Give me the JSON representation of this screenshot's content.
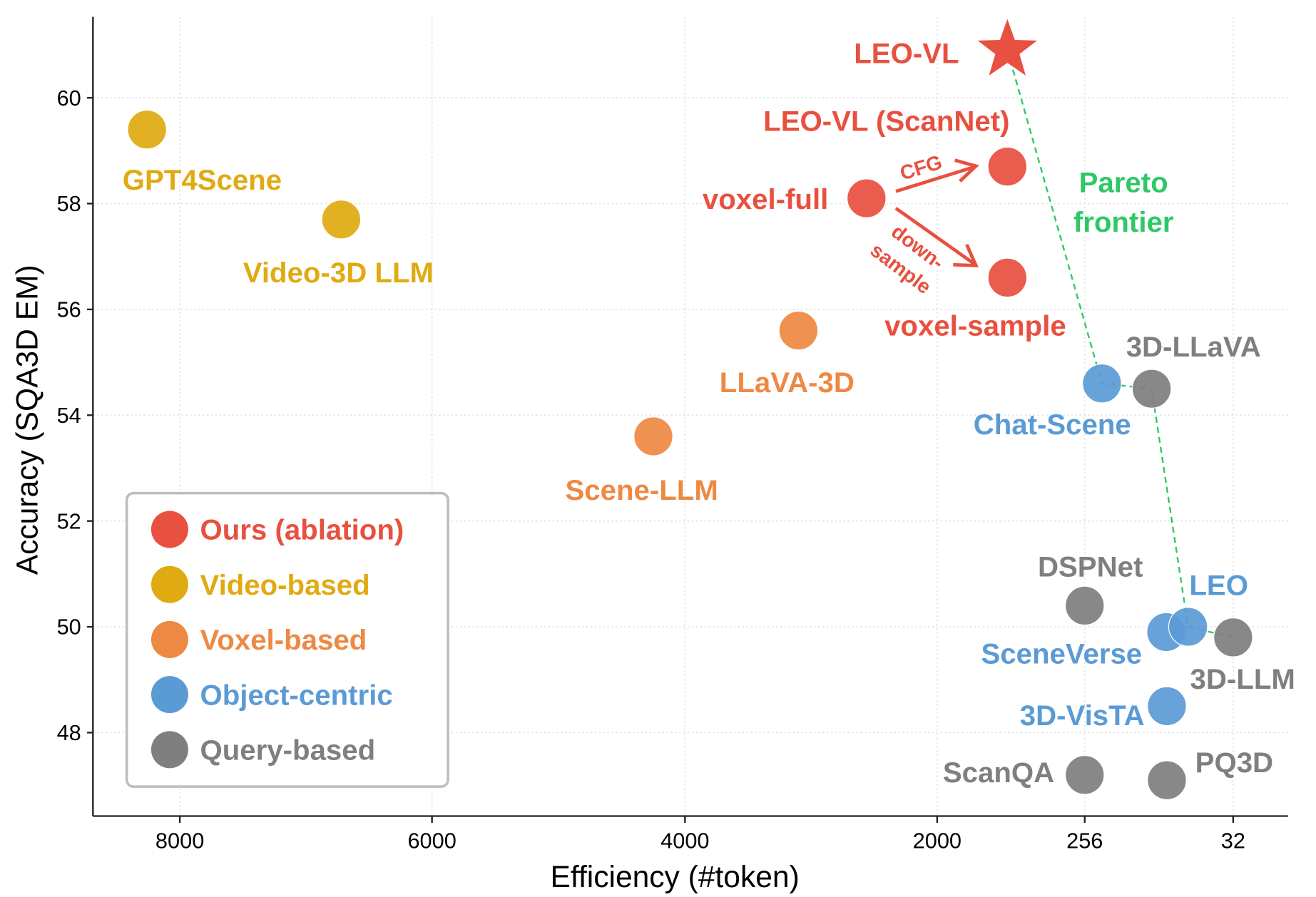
{
  "chart_data": {
    "type": "scatter",
    "xlabel": "Efficiency (#token)",
    "ylabel": "Accuracy (SQA3D EM)",
    "x_ticks": [
      8000,
      6000,
      4000,
      2000,
      256,
      32
    ],
    "x_scale": "piecewise, reversed (more tokens on left)",
    "y_ticks": [
      48,
      50,
      52,
      54,
      56,
      58,
      60
    ],
    "ylim": [
      46.6,
      61.6
    ],
    "grid": true,
    "legend_placement": "bottom-left",
    "colors": {
      "Ours (ablation)": "#e8503f",
      "Video-based": "#e0aa12",
      "Voxel-based": "#ee8944",
      "Object-centric": "#5b9bd5",
      "Query-based": "#7f7f7f",
      "pareto": "#2ec866"
    },
    "legend": [
      "Ours (ablation)",
      "Video-based",
      "Voxel-based",
      "Object-centric",
      "Query-based"
    ],
    "points": [
      {
        "name": "LEO-VL",
        "group": "Ours (ablation)",
        "x": 1170,
        "y": 60.9,
        "marker": "star"
      },
      {
        "name": "LEO-VL (ScanNet)",
        "group": "Ours (ablation)",
        "x": 1170,
        "y": 58.7
      },
      {
        "name": "voxel-full",
        "group": "Ours (ablation)",
        "x": 2560,
        "y": 58.1
      },
      {
        "name": "voxel-sample",
        "group": "Ours (ablation)",
        "x": 1170,
        "y": 56.6
      },
      {
        "name": "GPT4Scene",
        "group": "Video-based",
        "x": 8260,
        "y": 59.4
      },
      {
        "name": "Video-3D LLM",
        "group": "Video-based",
        "x": 6720,
        "y": 57.7
      },
      {
        "name": "LLaVA-3D",
        "group": "Voxel-based",
        "x": 3100,
        "y": 55.6
      },
      {
        "name": "Scene-LLM",
        "group": "Voxel-based",
        "x": 4250,
        "y": 53.6
      },
      {
        "name": "Chat-Scene",
        "group": "Object-centric",
        "x": 230,
        "y": 54.6
      },
      {
        "name": "SceneVerse",
        "group": "Object-centric",
        "x": 133,
        "y": 49.9
      },
      {
        "name": "LEO",
        "group": "Object-centric",
        "x": 100,
        "y": 50.0
      },
      {
        "name": "3D-VisTA",
        "group": "Object-centric",
        "x": 132,
        "y": 48.5
      },
      {
        "name": "3D-LLaVA",
        "group": "Query-based",
        "x": 155,
        "y": 54.5
      },
      {
        "name": "DSPNet",
        "group": "Query-based",
        "x": 256,
        "y": 50.4
      },
      {
        "name": "3D-LLM",
        "group": "Query-based",
        "x": 32,
        "y": 49.8
      },
      {
        "name": "ScanQA",
        "group": "Query-based",
        "x": 256,
        "y": 47.2
      },
      {
        "name": "PQ3D",
        "group": "Query-based",
        "x": 132,
        "y": 47.1
      }
    ],
    "pareto_frontier": {
      "label_line1": "Pareto",
      "label_line2": "frontier",
      "path": [
        "LEO-VL",
        "Chat-Scene",
        "3D-LLaVA",
        "LEO",
        "3D-LLM"
      ]
    },
    "annotations": {
      "cfg": "CFG",
      "down_line1": "down-",
      "down_line2": "sample"
    }
  }
}
